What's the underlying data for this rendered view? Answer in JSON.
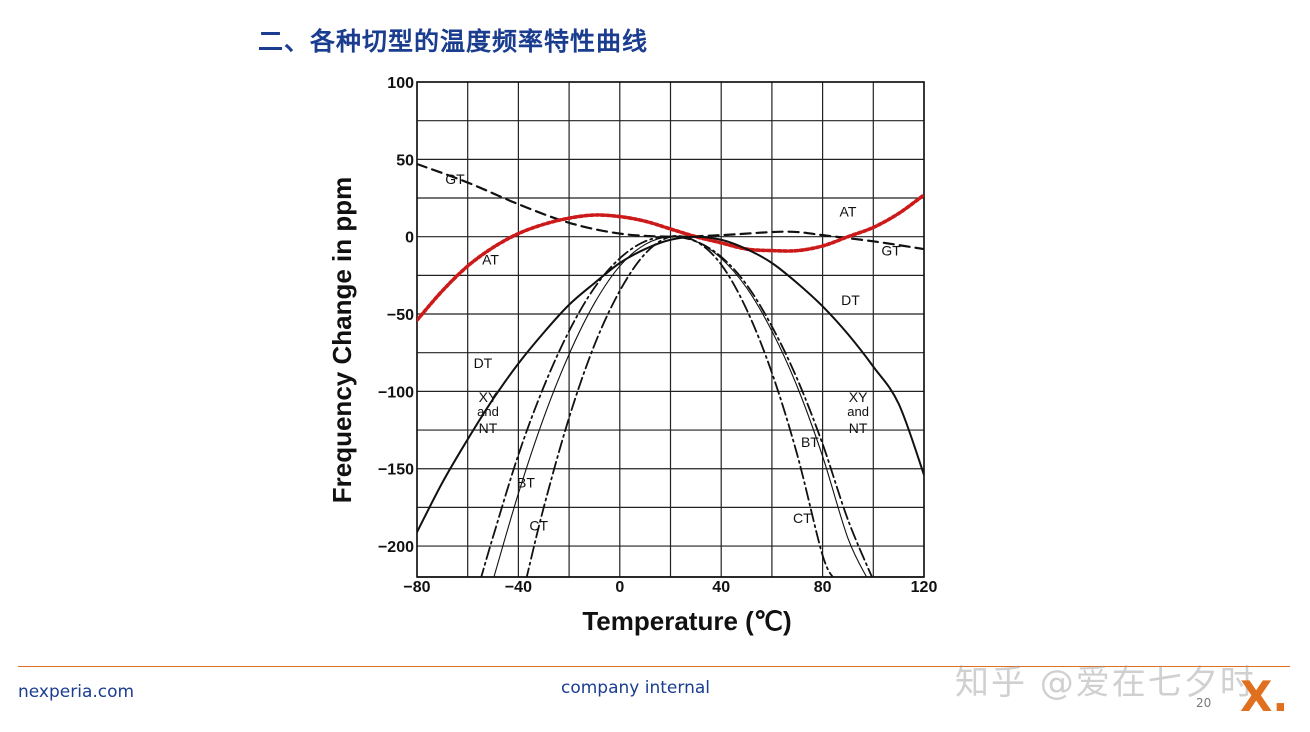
{
  "slide": {
    "title": "二、各种切型的温度频率特性曲线"
  },
  "chart_data": {
    "type": "line",
    "xlabel": "Temperature (℃)",
    "ylabel": "Frequency Change in ppm",
    "xlim": [
      -80,
      120
    ],
    "ylim": [
      -220,
      100
    ],
    "x_ticks": [
      -80,
      -40,
      0,
      40,
      80,
      120
    ],
    "y_ticks": [
      100,
      50,
      0,
      -50,
      -100,
      -150,
      -200
    ],
    "grid": true,
    "series": [
      {
        "name": "GT",
        "style": "dashed",
        "color": "#111111",
        "points": [
          [
            -80,
            47
          ],
          [
            -60,
            35
          ],
          [
            -40,
            21
          ],
          [
            -20,
            9
          ],
          [
            0,
            2
          ],
          [
            20,
            0
          ],
          [
            40,
            1
          ],
          [
            60,
            3
          ],
          [
            70,
            3
          ],
          [
            80,
            1
          ],
          [
            100,
            -3
          ],
          [
            120,
            -8
          ]
        ]
      },
      {
        "name": "AT",
        "style": "dotted",
        "color": "#cc1a1a",
        "points": [
          [
            -80,
            -54
          ],
          [
            -70,
            -35
          ],
          [
            -60,
            -19
          ],
          [
            -50,
            -7
          ],
          [
            -40,
            2
          ],
          [
            -30,
            8
          ],
          [
            -20,
            12
          ],
          [
            -10,
            14
          ],
          [
            0,
            13
          ],
          [
            10,
            10
          ],
          [
            20,
            5
          ],
          [
            30,
            0
          ],
          [
            40,
            -4
          ],
          [
            50,
            -8
          ],
          [
            60,
            -9
          ],
          [
            70,
            -9
          ],
          [
            80,
            -6
          ],
          [
            90,
            0
          ],
          [
            100,
            6
          ],
          [
            110,
            15
          ],
          [
            120,
            27
          ]
        ]
      },
      {
        "name": "DT",
        "style": "solid",
        "color": "#111111",
        "points": [
          [
            -80,
            -191
          ],
          [
            -70,
            -159
          ],
          [
            -60,
            -131
          ],
          [
            -50,
            -105
          ],
          [
            -40,
            -82
          ],
          [
            -30,
            -62
          ],
          [
            -20,
            -44
          ],
          [
            -10,
            -30
          ],
          [
            0,
            -17
          ],
          [
            10,
            -8
          ],
          [
            20,
            -2
          ],
          [
            30,
            0
          ],
          [
            40,
            -2
          ],
          [
            50,
            -8
          ],
          [
            60,
            -17
          ],
          [
            70,
            -30
          ],
          [
            80,
            -45
          ],
          [
            90,
            -63
          ],
          [
            100,
            -84
          ],
          [
            110,
            -108
          ],
          [
            120,
            -154
          ]
        ]
      },
      {
        "name": "XY and NT",
        "style": "dash-dot",
        "color": "#111111",
        "points": [
          [
            -55,
            -222
          ],
          [
            -50,
            -194
          ],
          [
            -40,
            -141
          ],
          [
            -30,
            -97
          ],
          [
            -20,
            -61
          ],
          [
            -10,
            -33
          ],
          [
            0,
            -14
          ],
          [
            10,
            -3
          ],
          [
            20,
            0
          ],
          [
            30,
            -3
          ],
          [
            40,
            -13
          ],
          [
            50,
            -31
          ],
          [
            60,
            -58
          ],
          [
            70,
            -92
          ],
          [
            80,
            -134
          ],
          [
            90,
            -183
          ],
          [
            100,
            -222
          ]
        ]
      },
      {
        "name": "BT",
        "style": "solid-thin",
        "color": "#111111",
        "points": [
          [
            -50,
            -222
          ],
          [
            -40,
            -166
          ],
          [
            -30,
            -117
          ],
          [
            -20,
            -76
          ],
          [
            -10,
            -43
          ],
          [
            0,
            -19
          ],
          [
            10,
            -5
          ],
          [
            20,
            0
          ],
          [
            30,
            -3
          ],
          [
            40,
            -14
          ],
          [
            50,
            -33
          ],
          [
            60,
            -61
          ],
          [
            70,
            -97
          ],
          [
            80,
            -142
          ],
          [
            90,
            -195
          ],
          [
            98,
            -222
          ]
        ]
      },
      {
        "name": "CT",
        "style": "dash-dot",
        "color": "#111111",
        "points": [
          [
            -37,
            -222
          ],
          [
            -30,
            -175
          ],
          [
            -20,
            -117
          ],
          [
            -10,
            -70
          ],
          [
            0,
            -35
          ],
          [
            10,
            -11
          ],
          [
            20,
            0
          ],
          [
            30,
            -3
          ],
          [
            40,
            -18
          ],
          [
            50,
            -47
          ],
          [
            60,
            -88
          ],
          [
            70,
            -141
          ],
          [
            80,
            -206
          ],
          [
            85,
            -222
          ]
        ]
      }
    ],
    "annotations": [
      {
        "text": "GT",
        "x": -65,
        "y": 34
      },
      {
        "text": "AT",
        "x": 90,
        "y": 13
      },
      {
        "text": "GT",
        "x": 107,
        "y": -12
      },
      {
        "text": "AT",
        "x": -51,
        "y": -18
      },
      {
        "text": "DT",
        "x": 91,
        "y": -44
      },
      {
        "text": "DT",
        "x": -54,
        "y": -85
      },
      {
        "text": "XY",
        "x": -52,
        "y": -107
      },
      {
        "text": "and",
        "x": -52,
        "y": -116
      },
      {
        "text": "NT",
        "x": -52,
        "y": -127
      },
      {
        "text": "XY",
        "x": 94,
        "y": -107
      },
      {
        "text": "and",
        "x": 94,
        "y": -116
      },
      {
        "text": "NT",
        "x": 94,
        "y": -127
      },
      {
        "text": "BT",
        "x": 75,
        "y": -136
      },
      {
        "text": "BT",
        "x": -37,
        "y": -162
      },
      {
        "text": "CT",
        "x": -32,
        "y": -190
      },
      {
        "text": "CT",
        "x": 72,
        "y": -185
      }
    ]
  },
  "footer": {
    "website": "nexperia.com",
    "classification": "company internal",
    "watermark": "知乎 @爱在七夕时",
    "page_number": "20",
    "logo_text": "X."
  }
}
